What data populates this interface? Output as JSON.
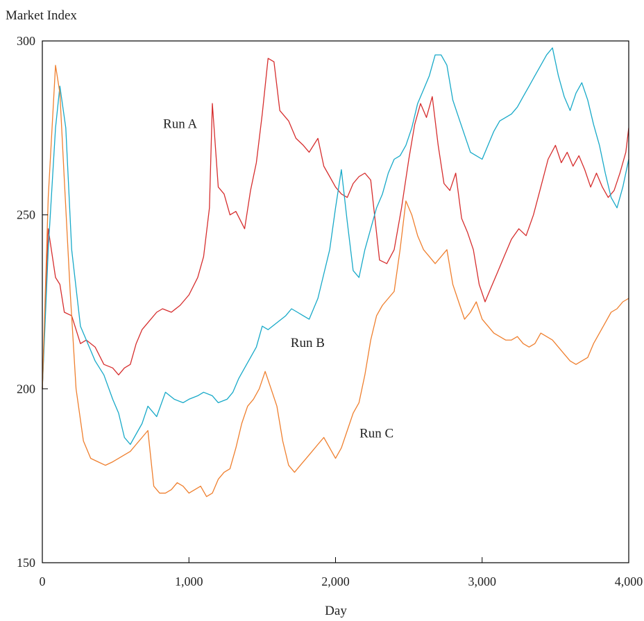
{
  "chart_data": {
    "type": "line",
    "title": "",
    "xlabel": "Day",
    "ylabel": "Market Index",
    "xlim": [
      0,
      4000
    ],
    "ylim": [
      150,
      300
    ],
    "xticks": [
      0,
      1000,
      2000,
      3000,
      4000
    ],
    "xtick_labels": [
      "0",
      "1,000",
      "2,000",
      "3,000",
      "4,000"
    ],
    "yticks": [
      150,
      200,
      250,
      300
    ],
    "ytick_labels": [
      "150",
      "200",
      "250",
      "300"
    ],
    "grid": false,
    "legend": "inline labels",
    "series": [
      {
        "name": "Run A",
        "color": "#d62d2d",
        "x": [
          0,
          40,
          90,
          120,
          150,
          200,
          260,
          300,
          360,
          420,
          480,
          520,
          560,
          600,
          640,
          680,
          720,
          780,
          820,
          880,
          940,
          1000,
          1060,
          1100,
          1140,
          1160,
          1200,
          1240,
          1280,
          1320,
          1380,
          1420,
          1460,
          1500,
          1540,
          1580,
          1620,
          1680,
          1730,
          1780,
          1820,
          1880,
          1920,
          1960,
          2000,
          2040,
          2080,
          2120,
          2160,
          2200,
          2240,
          2300,
          2350,
          2400,
          2450,
          2500,
          2540,
          2580,
          2620,
          2660,
          2700,
          2740,
          2780,
          2820,
          2860,
          2900,
          2940,
          2980,
          3020,
          3060,
          3100,
          3150,
          3200,
          3250,
          3300,
          3350,
          3400,
          3450,
          3500,
          3540,
          3580,
          3620,
          3660,
          3700,
          3740,
          3780,
          3820,
          3860,
          3900,
          3940,
          3980,
          4000
        ],
        "values": [
          200,
          246,
          232,
          230,
          222,
          221,
          213,
          214,
          212,
          207,
          206,
          204,
          206,
          207,
          213,
          217,
          219,
          222,
          223,
          222,
          224,
          227,
          232,
          238,
          252,
          282,
          258,
          256,
          250,
          251,
          246,
          257,
          265,
          279,
          295,
          294,
          280,
          277,
          272,
          270,
          268,
          272,
          264,
          261,
          258,
          256,
          255,
          259,
          261,
          262,
          260,
          237,
          236,
          240,
          252,
          266,
          276,
          282,
          278,
          284,
          270,
          259,
          257,
          262,
          249,
          245,
          240,
          230,
          225,
          229,
          233,
          238,
          243,
          246,
          244,
          250,
          258,
          266,
          270,
          265,
          268,
          264,
          267,
          263,
          258,
          262,
          258,
          255,
          257,
          262,
          268,
          275
        ]
      },
      {
        "name": "Run B",
        "color": "#17a9c8",
        "x": [
          0,
          40,
          90,
          120,
          160,
          200,
          260,
          300,
          360,
          420,
          480,
          520,
          560,
          600,
          640,
          680,
          720,
          780,
          840,
          900,
          960,
          1000,
          1060,
          1100,
          1160,
          1200,
          1260,
          1300,
          1340,
          1380,
          1420,
          1460,
          1500,
          1540,
          1600,
          1660,
          1700,
          1740,
          1780,
          1820,
          1880,
          1920,
          1960,
          2000,
          2040,
          2080,
          2120,
          2160,
          2200,
          2240,
          2280,
          2320,
          2360,
          2400,
          2440,
          2480,
          2520,
          2560,
          2600,
          2640,
          2680,
          2720,
          2760,
          2800,
          2840,
          2880,
          2920,
          2960,
          3000,
          3040,
          3080,
          3120,
          3160,
          3200,
          3240,
          3280,
          3320,
          3360,
          3400,
          3440,
          3480,
          3520,
          3560,
          3600,
          3640,
          3680,
          3720,
          3760,
          3800,
          3840,
          3880,
          3920,
          3960,
          4000
        ],
        "values": [
          200,
          240,
          275,
          287,
          275,
          240,
          218,
          214,
          208,
          204,
          197,
          193,
          186,
          184,
          187,
          190,
          195,
          192,
          199,
          197,
          196,
          197,
          198,
          199,
          198,
          196,
          197,
          199,
          203,
          206,
          209,
          212,
          218,
          217,
          219,
          221,
          223,
          222,
          221,
          220,
          226,
          233,
          240,
          252,
          263,
          248,
          234,
          232,
          240,
          246,
          252,
          256,
          262,
          266,
          267,
          270,
          275,
          282,
          286,
          290,
          296,
          296,
          293,
          283,
          278,
          273,
          268,
          267,
          266,
          270,
          274,
          277,
          278,
          279,
          281,
          284,
          287,
          290,
          293,
          296,
          298,
          290,
          284,
          280,
          285,
          288,
          283,
          276,
          270,
          262,
          255,
          252,
          258,
          266
        ]
      },
      {
        "name": "Run C",
        "color": "#ef7f2e",
        "x": [
          0,
          40,
          90,
          120,
          150,
          190,
          230,
          280,
          330,
          380,
          430,
          480,
          520,
          560,
          600,
          640,
          680,
          720,
          760,
          800,
          840,
          880,
          920,
          960,
          1000,
          1040,
          1080,
          1120,
          1160,
          1200,
          1240,
          1280,
          1320,
          1360,
          1400,
          1440,
          1480,
          1520,
          1560,
          1600,
          1640,
          1680,
          1720,
          1760,
          1800,
          1840,
          1880,
          1920,
          1960,
          2000,
          2040,
          2080,
          2120,
          2160,
          2200,
          2240,
          2280,
          2320,
          2360,
          2400,
          2440,
          2480,
          2520,
          2560,
          2600,
          2640,
          2680,
          2720,
          2760,
          2800,
          2840,
          2880,
          2920,
          2960,
          3000,
          3040,
          3080,
          3120,
          3160,
          3200,
          3240,
          3280,
          3320,
          3360,
          3400,
          3440,
          3480,
          3520,
          3560,
          3600,
          3640,
          3680,
          3720,
          3760,
          3800,
          3840,
          3880,
          3920,
          3960,
          4000
        ],
        "values": [
          200,
          255,
          293,
          285,
          260,
          228,
          200,
          185,
          180,
          179,
          178,
          179,
          180,
          181,
          182,
          184,
          186,
          188,
          172,
          170,
          170,
          171,
          173,
          172,
          170,
          171,
          172,
          169,
          170,
          174,
          176,
          177,
          183,
          190,
          195,
          197,
          200,
          205,
          200,
          195,
          185,
          178,
          176,
          178,
          180,
          182,
          184,
          186,
          183,
          180,
          183,
          188,
          193,
          196,
          204,
          214,
          221,
          224,
          226,
          228,
          240,
          254,
          250,
          244,
          240,
          238,
          236,
          238,
          240,
          230,
          225,
          220,
          222,
          225,
          220,
          218,
          216,
          215,
          214,
          214,
          215,
          213,
          212,
          213,
          216,
          215,
          214,
          212,
          210,
          208,
          207,
          208,
          209,
          213,
          216,
          219,
          222,
          223,
          225,
          226
        ]
      }
    ],
    "annotations": [
      {
        "text": "Run A",
        "x": 940,
        "y": 275
      },
      {
        "text": "Run B",
        "x": 1810,
        "y": 212
      },
      {
        "text": "Run C",
        "x": 2280,
        "y": 186
      }
    ]
  }
}
